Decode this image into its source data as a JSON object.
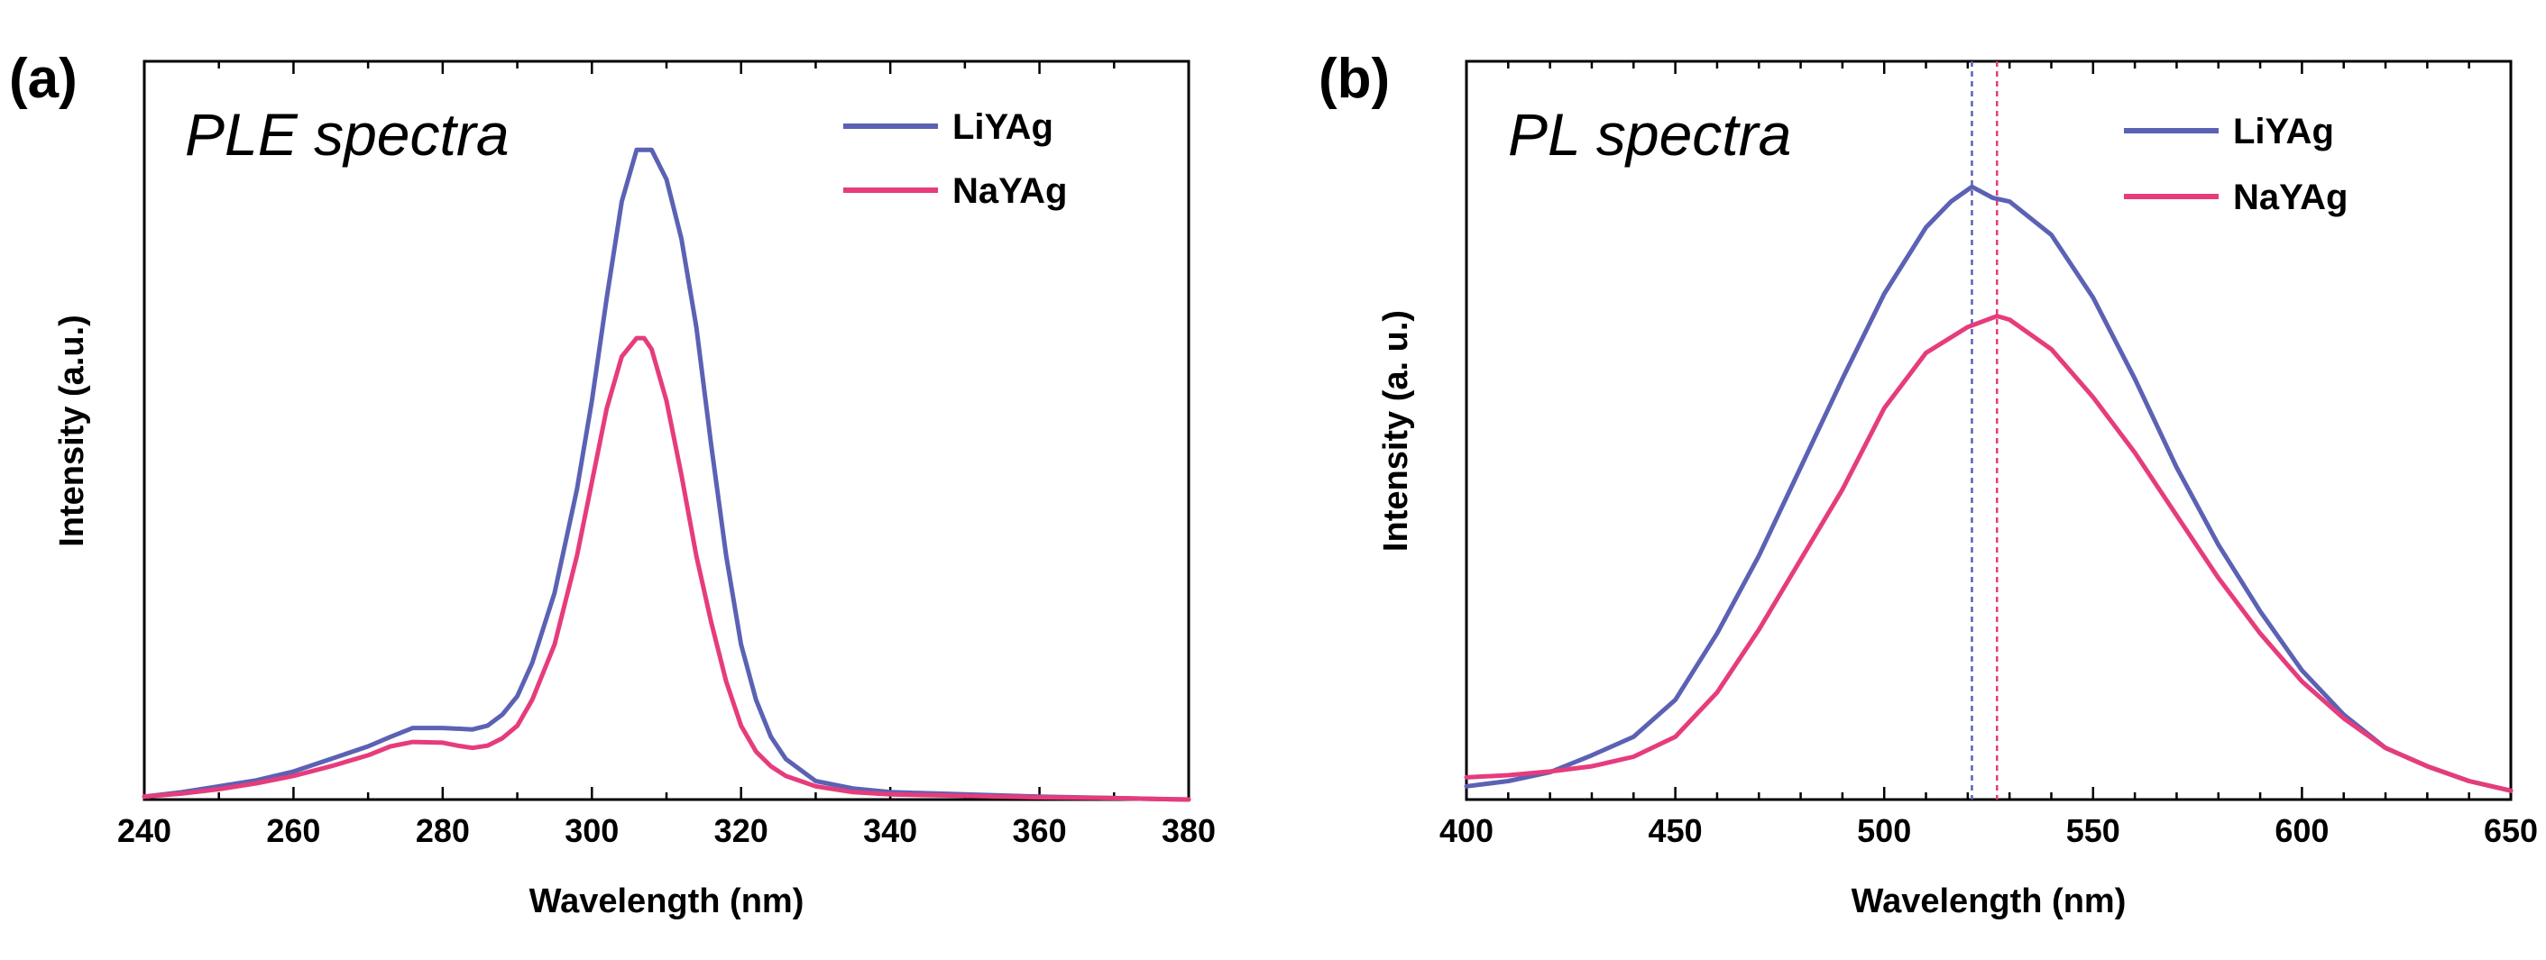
{
  "chart_data": [
    {
      "type": "line",
      "panel_label": "(a)",
      "title": "PLE spectra",
      "xlabel": "Wavelength (nm)",
      "ylabel": "Intensity (a.u.)",
      "xlim": [
        240,
        380
      ],
      "ylim": [
        0,
        1.0
      ],
      "xticks": [
        240,
        260,
        280,
        300,
        320,
        340,
        360,
        380
      ],
      "yticks_shown": false,
      "legend_position": "top-right",
      "series": [
        {
          "name": "LiYAg",
          "color": "#5b62b4",
          "x": [
            240,
            245,
            250,
            255,
            260,
            265,
            270,
            273,
            276,
            280,
            284,
            286,
            288,
            290,
            292,
            295,
            298,
            300,
            302,
            304,
            306,
            307,
            308,
            310,
            312,
            314,
            316,
            318,
            320,
            322,
            324,
            326,
            330,
            335,
            340,
            350,
            360,
            370,
            380
          ],
          "y": [
            0.004,
            0.01,
            0.018,
            0.026,
            0.038,
            0.055,
            0.072,
            0.085,
            0.097,
            0.097,
            0.095,
            0.1,
            0.115,
            0.14,
            0.185,
            0.28,
            0.42,
            0.54,
            0.68,
            0.81,
            0.88,
            0.88,
            0.88,
            0.84,
            0.76,
            0.64,
            0.48,
            0.33,
            0.21,
            0.135,
            0.085,
            0.055,
            0.025,
            0.015,
            0.01,
            0.007,
            0.004,
            0.002,
            0.0
          ]
        },
        {
          "name": "NaYAg",
          "color": "#e63c7c",
          "x": [
            240,
            245,
            250,
            255,
            260,
            265,
            270,
            273,
            276,
            280,
            282,
            284,
            286,
            288,
            290,
            292,
            295,
            298,
            300,
            302,
            304,
            306,
            307,
            308,
            310,
            312,
            314,
            316,
            318,
            320,
            322,
            324,
            326,
            330,
            335,
            340,
            350,
            360,
            370,
            380
          ],
          "y": [
            0.004,
            0.008,
            0.014,
            0.022,
            0.032,
            0.045,
            0.06,
            0.072,
            0.078,
            0.077,
            0.073,
            0.07,
            0.073,
            0.083,
            0.1,
            0.135,
            0.21,
            0.33,
            0.43,
            0.53,
            0.6,
            0.625,
            0.625,
            0.61,
            0.54,
            0.44,
            0.33,
            0.24,
            0.16,
            0.1,
            0.065,
            0.045,
            0.032,
            0.018,
            0.01,
            0.007,
            0.005,
            0.003,
            0.002,
            0.0
          ]
        }
      ]
    },
    {
      "type": "line",
      "panel_label": "(b)",
      "title": "PL spectra",
      "xlabel": "Wavelength (nm)",
      "ylabel": "Intensity (a. u.)",
      "xlim": [
        400,
        650
      ],
      "ylim": [
        0,
        1.0
      ],
      "xticks": [
        400,
        450,
        500,
        550,
        600,
        650
      ],
      "yticks_shown": false,
      "legend_position": "top-right",
      "reference_lines": [
        {
          "series": "LiYAg",
          "x": 521
        },
        {
          "series": "NaYAg",
          "x": 527
        }
      ],
      "series": [
        {
          "name": "LiYAg",
          "color": "#5b62b4",
          "x": [
            400,
            410,
            420,
            430,
            440,
            450,
            460,
            470,
            480,
            490,
            500,
            510,
            516,
            521,
            526,
            530,
            540,
            550,
            560,
            570,
            580,
            590,
            600,
            610,
            620,
            630,
            640,
            650
          ],
          "y": [
            0.018,
            0.025,
            0.037,
            0.06,
            0.085,
            0.135,
            0.225,
            0.33,
            0.45,
            0.57,
            0.685,
            0.775,
            0.81,
            0.83,
            0.815,
            0.81,
            0.765,
            0.68,
            0.57,
            0.45,
            0.345,
            0.255,
            0.175,
            0.115,
            0.07,
            0.045,
            0.025,
            0.012
          ]
        },
        {
          "name": "NaYAg",
          "color": "#e63c7c",
          "x": [
            400,
            410,
            420,
            430,
            440,
            450,
            460,
            470,
            480,
            490,
            500,
            510,
            520,
            527,
            530,
            540,
            550,
            560,
            570,
            580,
            590,
            600,
            610,
            620,
            630,
            640,
            650
          ],
          "y": [
            0.03,
            0.033,
            0.038,
            0.045,
            0.058,
            0.085,
            0.145,
            0.23,
            0.325,
            0.42,
            0.53,
            0.605,
            0.64,
            0.655,
            0.65,
            0.61,
            0.545,
            0.47,
            0.385,
            0.3,
            0.225,
            0.16,
            0.11,
            0.07,
            0.045,
            0.025,
            0.012
          ]
        }
      ]
    }
  ]
}
